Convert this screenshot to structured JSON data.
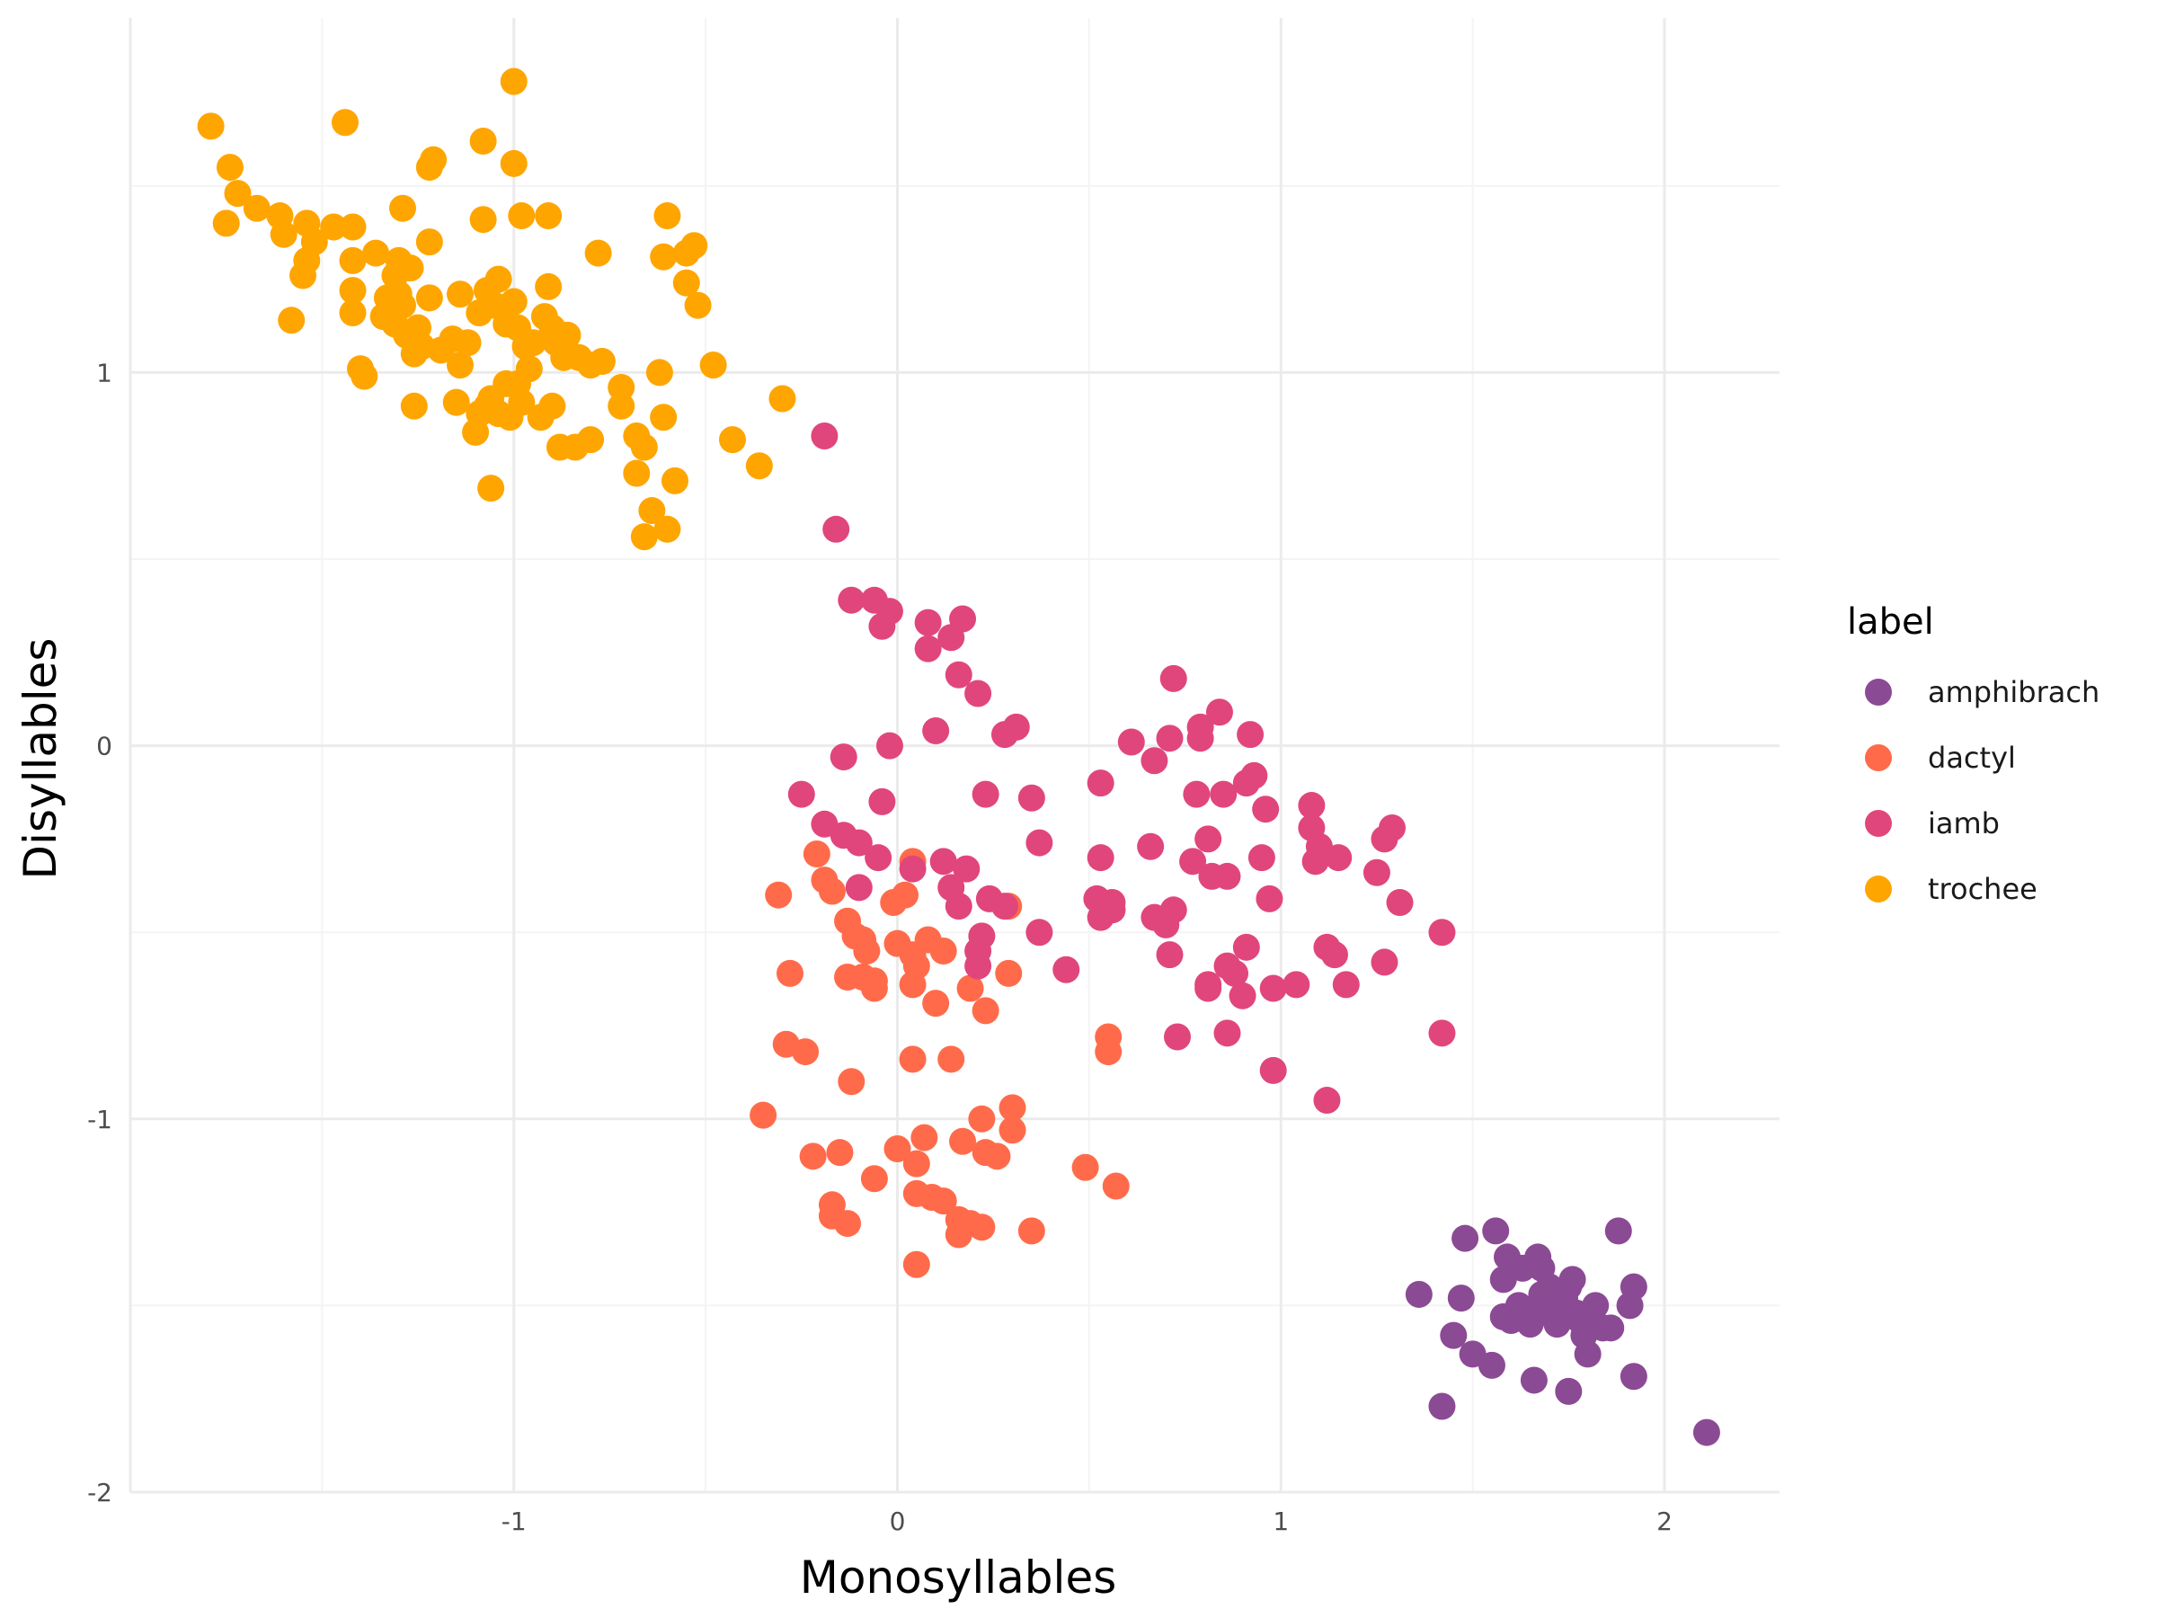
{
  "chart_data": {
    "type": "scatter",
    "xlabel": "Monosyllables",
    "ylabel": "Disyllables",
    "xlim": [
      -2.0,
      2.3
    ],
    "ylim": [
      -2.0,
      1.95
    ],
    "x_ticks": [
      -1,
      0,
      1,
      2
    ],
    "x_tick_labels": [
      "-1",
      "0",
      "1",
      "2"
    ],
    "y_ticks": [
      -2,
      -1,
      0,
      1
    ],
    "y_tick_labels": [
      "-2",
      "-1",
      "0",
      "1"
    ],
    "grid": true,
    "legend": {
      "title": "label",
      "position": "right"
    },
    "series": [
      {
        "name": "amphibrach",
        "color": "#8B4A94",
        "points": [
          [
            1.42,
            -1.77
          ],
          [
            1.45,
            -1.58
          ],
          [
            1.48,
            -1.32
          ],
          [
            1.5,
            -1.63
          ],
          [
            1.47,
            -1.48
          ],
          [
            1.36,
            -1.47
          ],
          [
            1.56,
            -1.3
          ],
          [
            1.58,
            -1.53
          ],
          [
            1.59,
            -1.37
          ],
          [
            1.58,
            -1.43
          ],
          [
            1.6,
            -1.54
          ],
          [
            1.62,
            -1.5
          ],
          [
            1.64,
            -1.52
          ],
          [
            1.65,
            -1.55
          ],
          [
            1.66,
            -1.7
          ],
          [
            1.67,
            -1.37
          ],
          [
            1.68,
            -1.4
          ],
          [
            1.7,
            -1.45
          ],
          [
            1.7,
            -1.52
          ],
          [
            1.72,
            -1.55
          ],
          [
            1.74,
            -1.48
          ],
          [
            1.75,
            -1.45
          ],
          [
            1.76,
            -1.43
          ],
          [
            1.77,
            -1.52
          ],
          [
            1.78,
            -1.54
          ],
          [
            1.8,
            -1.63
          ],
          [
            1.82,
            -1.5
          ],
          [
            1.84,
            -1.56
          ],
          [
            1.86,
            -1.56
          ],
          [
            1.88,
            -1.3
          ],
          [
            1.91,
            -1.5
          ],
          [
            1.92,
            -1.45
          ],
          [
            1.92,
            -1.69
          ],
          [
            1.75,
            -1.73
          ],
          [
            1.55,
            -1.66
          ],
          [
            2.11,
            -1.84
          ],
          [
            1.68,
            -1.47
          ],
          [
            1.63,
            -1.4
          ],
          [
            1.79,
            -1.58
          ]
        ]
      },
      {
        "name": "dactyl",
        "color": "#FF6B4A",
        "points": [
          [
            -0.31,
            -0.4
          ],
          [
            -0.28,
            -0.61
          ],
          [
            -0.29,
            -0.8
          ],
          [
            -0.24,
            -0.82
          ],
          [
            -0.35,
            -0.99
          ],
          [
            -0.22,
            -1.1
          ],
          [
            -0.15,
            -1.09
          ],
          [
            -0.17,
            -1.23
          ],
          [
            -0.17,
            -1.26
          ],
          [
            -0.13,
            -1.28
          ],
          [
            -0.06,
            -1.16
          ],
          [
            0.0,
            -1.08
          ],
          [
            0.05,
            -1.2
          ],
          [
            0.05,
            -1.12
          ],
          [
            0.07,
            -1.05
          ],
          [
            0.09,
            -1.21
          ],
          [
            0.12,
            -1.22
          ],
          [
            0.16,
            -1.27
          ],
          [
            0.16,
            -1.31
          ],
          [
            0.19,
            -1.28
          ],
          [
            0.22,
            -1.29
          ],
          [
            0.05,
            -1.39
          ],
          [
            0.17,
            -1.06
          ],
          [
            0.23,
            -1.09
          ],
          [
            0.26,
            -1.1
          ],
          [
            0.22,
            -1.0
          ],
          [
            0.3,
            -1.03
          ],
          [
            0.3,
            -0.97
          ],
          [
            0.35,
            -1.3
          ],
          [
            0.49,
            -1.13
          ],
          [
            0.57,
            -1.18
          ],
          [
            0.55,
            -0.78
          ],
          [
            0.55,
            -0.82
          ],
          [
            -0.12,
            -0.9
          ],
          [
            0.04,
            -0.84
          ],
          [
            0.14,
            -0.84
          ],
          [
            -0.21,
            -0.29
          ],
          [
            -0.19,
            -0.36
          ],
          [
            -0.17,
            -0.39
          ],
          [
            -0.13,
            -0.47
          ],
          [
            -0.11,
            -0.51
          ],
          [
            -0.09,
            -0.52
          ],
          [
            -0.08,
            -0.55
          ],
          [
            -0.13,
            -0.62
          ],
          [
            -0.09,
            -0.62
          ],
          [
            -0.06,
            -0.63
          ],
          [
            -0.06,
            -0.65
          ],
          [
            0.0,
            -0.53
          ],
          [
            0.02,
            -0.4
          ],
          [
            -0.01,
            -0.42
          ],
          [
            0.04,
            -0.31
          ],
          [
            0.04,
            -0.56
          ],
          [
            0.04,
            -0.64
          ],
          [
            0.05,
            -0.59
          ],
          [
            0.08,
            -0.52
          ],
          [
            0.1,
            -0.69
          ],
          [
            0.12,
            -0.55
          ],
          [
            0.19,
            -0.65
          ],
          [
            0.23,
            -0.71
          ],
          [
            0.29,
            -0.61
          ],
          [
            0.29,
            -0.43
          ]
        ]
      },
      {
        "name": "iamb",
        "color": "#E0467C",
        "points": [
          [
            -0.19,
            0.83
          ],
          [
            -0.16,
            0.58
          ],
          [
            -0.12,
            0.39
          ],
          [
            -0.06,
            0.39
          ],
          [
            -0.02,
            0.36
          ],
          [
            -0.04,
            0.32
          ],
          [
            0.08,
            0.33
          ],
          [
            0.17,
            0.34
          ],
          [
            0.08,
            0.26
          ],
          [
            0.14,
            0.29
          ],
          [
            0.16,
            0.19
          ],
          [
            0.21,
            0.14
          ],
          [
            0.1,
            0.04
          ],
          [
            0.28,
            0.03
          ],
          [
            0.31,
            0.05
          ],
          [
            -0.02,
            0.0
          ],
          [
            -0.14,
            -0.03
          ],
          [
            -0.25,
            -0.13
          ],
          [
            -0.19,
            -0.21
          ],
          [
            -0.14,
            -0.24
          ],
          [
            -0.1,
            -0.26
          ],
          [
            -0.05,
            -0.3
          ],
          [
            -0.04,
            -0.15
          ],
          [
            0.04,
            -0.33
          ],
          [
            0.12,
            -0.31
          ],
          [
            0.18,
            -0.33
          ],
          [
            0.14,
            -0.38
          ],
          [
            0.16,
            -0.43
          ],
          [
            0.23,
            -0.13
          ],
          [
            0.35,
            -0.14
          ],
          [
            0.37,
            -0.26
          ],
          [
            0.28,
            -0.43
          ],
          [
            0.24,
            -0.41
          ],
          [
            0.22,
            -0.51
          ],
          [
            0.21,
            -0.55
          ],
          [
            0.21,
            -0.59
          ],
          [
            -0.1,
            -0.38
          ],
          [
            0.37,
            -0.5
          ],
          [
            0.44,
            -0.6
          ],
          [
            0.53,
            -0.1
          ],
          [
            0.53,
            -0.3
          ],
          [
            0.52,
            -0.41
          ],
          [
            0.53,
            -0.46
          ],
          [
            0.56,
            -0.42
          ],
          [
            0.56,
            -0.44
          ],
          [
            0.61,
            0.01
          ],
          [
            0.67,
            -0.04
          ],
          [
            0.66,
            -0.27
          ],
          [
            0.67,
            -0.46
          ],
          [
            0.7,
            -0.48
          ],
          [
            0.72,
            -0.44
          ],
          [
            0.71,
            -0.56
          ],
          [
            0.73,
            -0.78
          ],
          [
            0.71,
            0.02
          ],
          [
            0.72,
            0.18
          ],
          [
            0.78,
            -0.13
          ],
          [
            0.77,
            -0.31
          ],
          [
            0.79,
            0.05
          ],
          [
            0.79,
            0.02
          ],
          [
            0.81,
            -0.25
          ],
          [
            0.82,
            -0.35
          ],
          [
            0.84,
            0.09
          ],
          [
            0.85,
            -0.13
          ],
          [
            0.86,
            -0.35
          ],
          [
            0.86,
            -0.59
          ],
          [
            0.88,
            -0.61
          ],
          [
            0.9,
            -0.67
          ],
          [
            0.91,
            -0.54
          ],
          [
            0.81,
            -0.64
          ],
          [
            0.86,
            -0.77
          ],
          [
            0.91,
            -0.1
          ],
          [
            0.92,
            0.03
          ],
          [
            0.93,
            -0.08
          ],
          [
            0.95,
            -0.3
          ],
          [
            0.96,
            -0.17
          ],
          [
            0.97,
            -0.41
          ],
          [
            0.98,
            -0.65
          ],
          [
            0.98,
            -0.87
          ],
          [
            1.04,
            -0.64
          ],
          [
            1.08,
            -0.16
          ],
          [
            1.08,
            -0.22
          ],
          [
            1.09,
            -0.31
          ],
          [
            1.1,
            -0.27
          ],
          [
            1.12,
            -0.54
          ],
          [
            1.14,
            -0.56
          ],
          [
            1.15,
            -0.3
          ],
          [
            1.17,
            -0.64
          ],
          [
            1.12,
            -0.95
          ],
          [
            1.27,
            -0.25
          ],
          [
            1.29,
            -0.22
          ],
          [
            1.31,
            -0.42
          ],
          [
            1.27,
            -0.58
          ],
          [
            1.25,
            -0.34
          ],
          [
            1.42,
            -0.5
          ],
          [
            1.42,
            -0.77
          ],
          [
            0.81,
            -0.65
          ]
        ]
      },
      {
        "name": "trochee",
        "color": "#FFA500",
        "points": [
          [
            -1.0,
            1.78
          ],
          [
            -1.08,
            1.62
          ],
          [
            -1.0,
            1.56
          ],
          [
            -0.98,
            1.42
          ],
          [
            -0.91,
            1.42
          ],
          [
            -1.08,
            1.41
          ],
          [
            -1.44,
            1.67
          ],
          [
            -1.79,
            1.66
          ],
          [
            -1.74,
            1.55
          ],
          [
            -1.72,
            1.48
          ],
          [
            -1.67,
            1.44
          ],
          [
            -1.75,
            1.4
          ],
          [
            -1.61,
            1.42
          ],
          [
            -1.6,
            1.37
          ],
          [
            -1.54,
            1.4
          ],
          [
            -1.52,
            1.35
          ],
          [
            -1.47,
            1.39
          ],
          [
            -1.42,
            1.39
          ],
          [
            -1.54,
            1.3
          ],
          [
            -1.55,
            1.26
          ],
          [
            -1.42,
            1.3
          ],
          [
            -1.42,
            1.22
          ],
          [
            -1.42,
            1.16
          ],
          [
            -1.58,
            1.14
          ],
          [
            -1.36,
            1.32
          ],
          [
            -1.3,
            1.3
          ],
          [
            -1.29,
            1.44
          ],
          [
            -1.27,
            1.28
          ],
          [
            -1.22,
            1.35
          ],
          [
            -1.22,
            1.55
          ],
          [
            -1.21,
            1.57
          ],
          [
            -1.31,
            1.26
          ],
          [
            -1.3,
            1.21
          ],
          [
            -1.29,
            1.18
          ],
          [
            -1.33,
            1.2
          ],
          [
            -1.34,
            1.15
          ],
          [
            -1.31,
            1.13
          ],
          [
            -1.28,
            1.1
          ],
          [
            -1.25,
            1.12
          ],
          [
            -1.24,
            1.07
          ],
          [
            -1.22,
            1.2
          ],
          [
            -1.19,
            1.06
          ],
          [
            -1.16,
            1.09
          ],
          [
            -1.14,
            1.21
          ],
          [
            -1.12,
            1.08
          ],
          [
            -1.09,
            1.16
          ],
          [
            -1.07,
            1.22
          ],
          [
            -1.05,
            1.18
          ],
          [
            -1.04,
            1.25
          ],
          [
            -1.02,
            1.13
          ],
          [
            -1.0,
            1.19
          ],
          [
            -0.99,
            1.12
          ],
          [
            -0.97,
            1.07
          ],
          [
            -0.96,
            1.01
          ],
          [
            -0.95,
            1.08
          ],
          [
            -0.92,
            1.15
          ],
          [
            -0.9,
            1.12
          ],
          [
            -0.89,
            1.08
          ],
          [
            -0.87,
            1.04
          ],
          [
            -0.86,
            1.1
          ],
          [
            -0.83,
            1.04
          ],
          [
            -0.8,
            1.02
          ],
          [
            -0.77,
            1.03
          ],
          [
            -0.91,
            1.23
          ],
          [
            -0.99,
            0.97
          ],
          [
            -1.02,
            0.97
          ],
          [
            -1.06,
            0.93
          ],
          [
            -1.07,
            0.91
          ],
          [
            -1.09,
            0.89
          ],
          [
            -1.04,
            0.89
          ],
          [
            -1.01,
            0.88
          ],
          [
            -0.98,
            0.92
          ],
          [
            -0.93,
            0.88
          ],
          [
            -0.9,
            0.91
          ],
          [
            -0.88,
            0.8
          ],
          [
            -0.84,
            0.8
          ],
          [
            -0.8,
            0.82
          ],
          [
            -0.78,
            1.32
          ],
          [
            -0.72,
            0.96
          ],
          [
            -0.72,
            0.91
          ],
          [
            -0.68,
            0.83
          ],
          [
            -0.68,
            0.73
          ],
          [
            -0.66,
            0.8
          ],
          [
            -0.64,
            0.63
          ],
          [
            -0.61,
            0.88
          ],
          [
            -0.62,
            1.0
          ],
          [
            -0.6,
            0.58
          ],
          [
            -0.58,
            0.71
          ],
          [
            -0.66,
            0.56
          ],
          [
            -1.06,
            0.69
          ],
          [
            -1.1,
            0.84
          ],
          [
            -1.14,
            1.02
          ],
          [
            -1.15,
            0.92
          ],
          [
            -1.26,
            0.91
          ],
          [
            -1.4,
            1.01
          ],
          [
            -1.39,
            0.99
          ],
          [
            -0.6,
            1.42
          ],
          [
            -0.61,
            1.31
          ],
          [
            -0.55,
            1.32
          ],
          [
            -0.53,
            1.34
          ],
          [
            -0.55,
            1.24
          ],
          [
            -0.52,
            1.18
          ],
          [
            -0.48,
            1.02
          ],
          [
            -0.43,
            0.82
          ],
          [
            -0.36,
            0.75
          ],
          [
            -0.3,
            0.93
          ],
          [
            -0.87,
            1.06
          ],
          [
            -1.26,
            1.05
          ]
        ]
      }
    ]
  }
}
